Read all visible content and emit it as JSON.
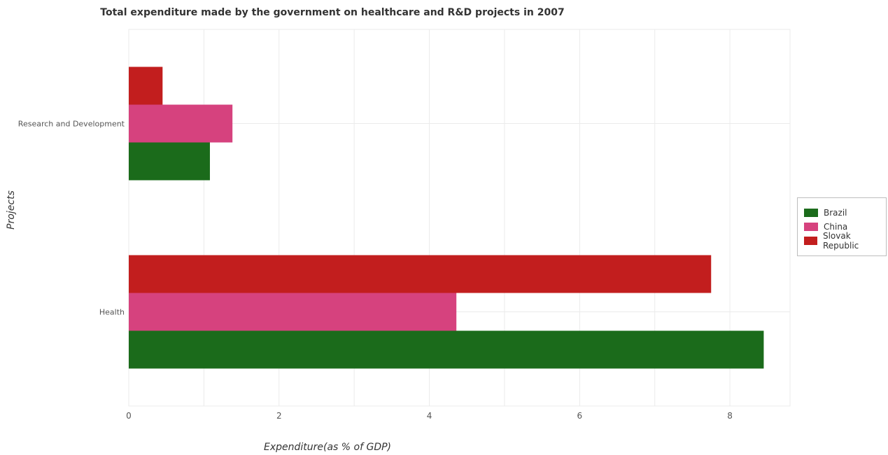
{
  "chart_data": {
    "type": "bar",
    "orientation": "horizontal",
    "title": "Total expenditure made by the government on healthcare and R&D projects in 2007",
    "xlabel": "Expenditure(as % of GDP)",
    "ylabel": "Projects",
    "categories": [
      "Health",
      "Research and Development"
    ],
    "series": [
      {
        "name": "Brazil",
        "color": "#1b6b1b",
        "values": [
          8.45,
          1.08
        ]
      },
      {
        "name": "China",
        "color": "#d6427e",
        "values": [
          4.36,
          1.38
        ]
      },
      {
        "name": "Slovak Republic",
        "color": "#c21e1e",
        "values": [
          7.75,
          0.45
        ]
      }
    ],
    "xlim": [
      0,
      8.8
    ],
    "xticks": [
      0,
      2,
      4,
      6,
      8
    ],
    "xtick_labels": [
      "0",
      "2",
      "4",
      "6",
      "8"
    ],
    "grid": true,
    "legend_position": "right"
  }
}
